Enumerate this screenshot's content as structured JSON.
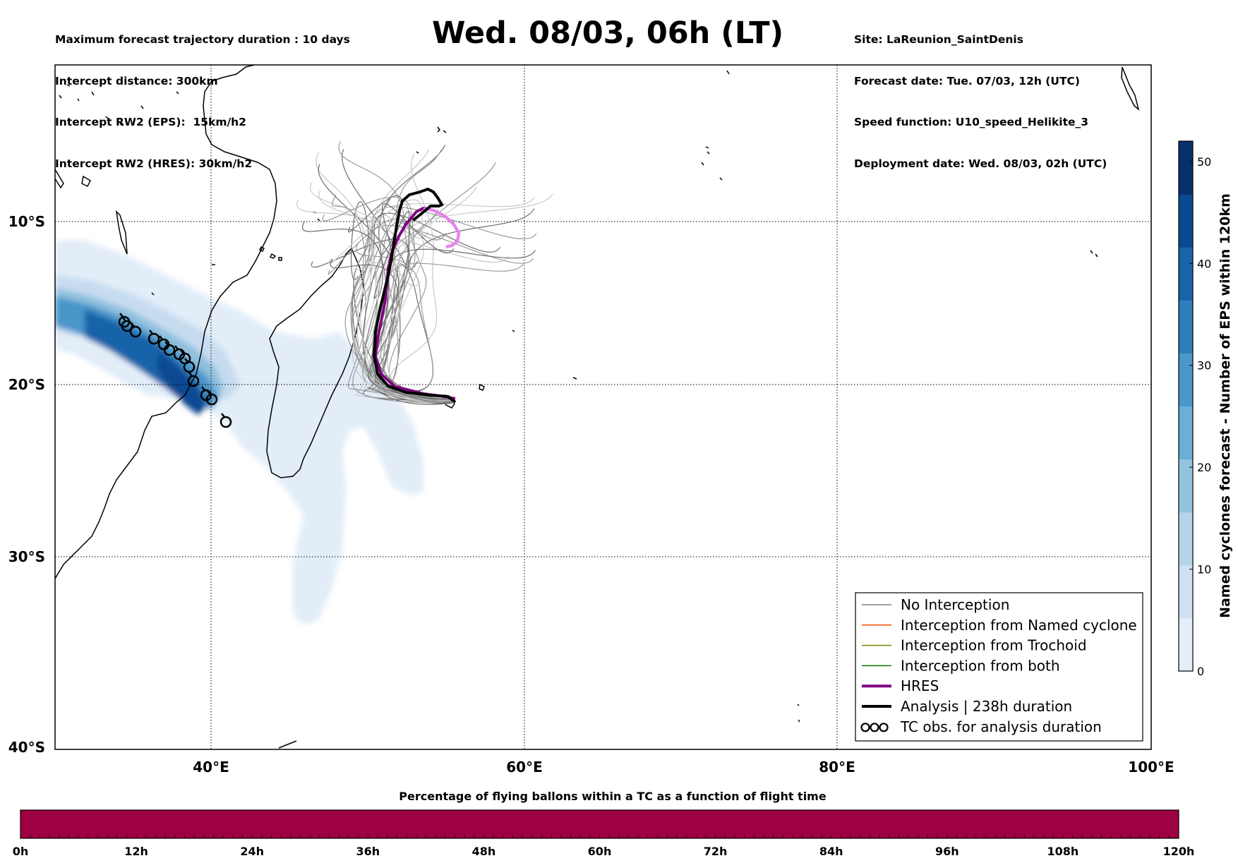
{
  "header": {
    "left_lines": [
      "Maximum forecast trajectory duration : 10 days",
      "Intercept distance: 300km",
      "Intercept RW2 (EPS):  15km/h2",
      "Intercept RW2 (HRES): 30km/h2"
    ],
    "right_lines": [
      "Site: LaReunion_SaintDenis",
      "Forecast date: Tue. 07/03, 12h (UTC)",
      "Speed function: U10_speed_Helikite_3",
      "Deployment date: Wed. 08/03, 02h (UTC)"
    ],
    "title": "Wed. 08/03, 06h (LT)"
  },
  "map": {
    "lon_range": [
      30,
      100
    ],
    "lat_range": [
      -40,
      -1
    ],
    "lon_ticks": [
      {
        "value": 40,
        "label": "40°E"
      },
      {
        "value": 60,
        "label": "60°E"
      },
      {
        "value": 80,
        "label": "80°E"
      },
      {
        "value": 100,
        "label": "100°E"
      }
    ],
    "lat_ticks": [
      {
        "value": -10,
        "label": "10°S"
      },
      {
        "value": -20,
        "label": "20°S"
      },
      {
        "value": -30,
        "label": "30°S"
      },
      {
        "value": -40,
        "label": "40°S"
      }
    ],
    "grid": "dotted"
  },
  "colorbar_right": {
    "title": "Named cyclones forecast - Number of EPS within 120km",
    "ticks": [
      0,
      10,
      20,
      30,
      40,
      50
    ],
    "max": 52,
    "colors": [
      "#e3eef9",
      "#cfe1f2",
      "#b5d4e9",
      "#93c3df",
      "#6daed5",
      "#4b97c9",
      "#2f7ebc",
      "#1864aa",
      "#0a4a90",
      "#08306b"
    ]
  },
  "legend": {
    "items": [
      {
        "label": "No Interception",
        "color": "#808080",
        "style": "thin-line"
      },
      {
        "label": "Interception from Named cyclone",
        "color": "#ff4500",
        "style": "thin-line"
      },
      {
        "label": "Interception from Trochoid",
        "color": "#808000",
        "style": "thin-line"
      },
      {
        "label": "Interception from both",
        "color": "#008000",
        "style": "thin-line"
      },
      {
        "label": "HRES",
        "color": "#800080",
        "style": "thick-line"
      },
      {
        "label": "Analysis | 238h duration",
        "color": "#000000",
        "style": "thick-line"
      },
      {
        "label": "TC obs. for analysis duration",
        "color": "#000000",
        "style": "tc-symbols"
      }
    ]
  },
  "bottom_colorbar": {
    "title": "Percentage of flying ballons within a TC as a function of flight time",
    "color": "#9e0142",
    "ticks": [
      "0h",
      "12h",
      "24h",
      "36h",
      "48h",
      "60h",
      "72h",
      "84h",
      "96h",
      "108h",
      "120h"
    ]
  }
}
